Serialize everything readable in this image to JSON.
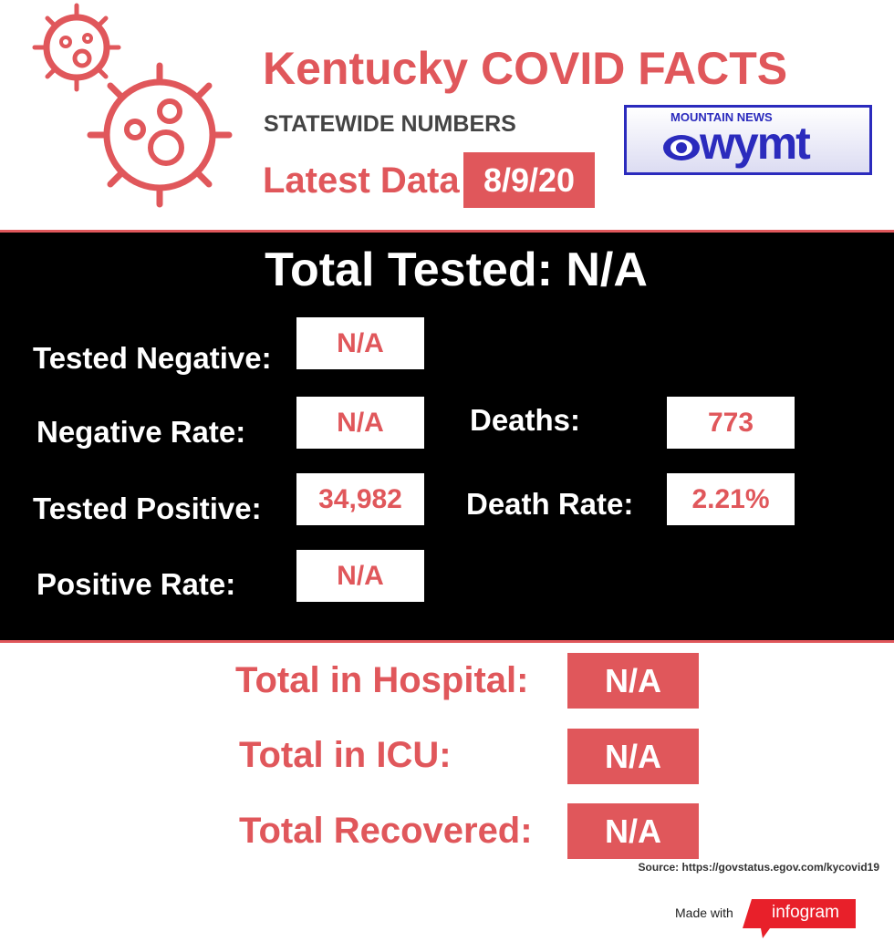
{
  "header": {
    "title": "Kentucky COVID FACTS",
    "subtitle": "STATEWIDE NUMBERS",
    "latest_label": "Latest Data",
    "date": "8/9/20",
    "logo": {
      "top": "MOUNTAIN NEWS",
      "name": "wymt"
    }
  },
  "total_tested": {
    "label": "Total Tested:",
    "value": "N/A"
  },
  "stats": [
    {
      "label": "Tested Negative:",
      "value": "N/A"
    },
    {
      "label": "Negative Rate:",
      "value": "N/A"
    },
    {
      "label": "Tested Positive:",
      "value": "34,982"
    },
    {
      "label": "Positive Rate:",
      "value": "N/A"
    },
    {
      "label": "Deaths:",
      "value": "773"
    },
    {
      "label": "Death Rate:",
      "value": "2.21%"
    }
  ],
  "totals": [
    {
      "label": "Total in Hospital:",
      "value": "N/A"
    },
    {
      "label": "Total in ICU:",
      "value": "N/A"
    },
    {
      "label": "Total Recovered:",
      "value": "N/A"
    }
  ],
  "footer": {
    "source": "Source: https://govstatus.egov.com/kycovid19",
    "made_with": "Made with",
    "brand": "infogram"
  }
}
